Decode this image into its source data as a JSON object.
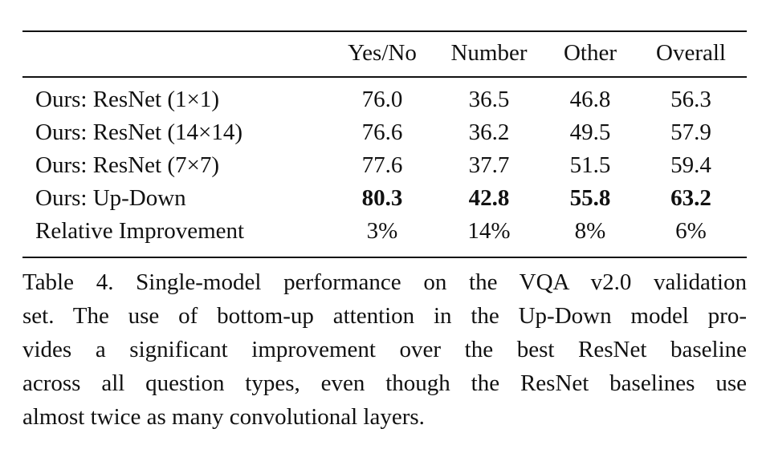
{
  "table": {
    "columns": [
      "",
      "Yes/No",
      "Number",
      "Other",
      "Overall"
    ],
    "rows": [
      {
        "label": "Ours: ResNet (1×1)",
        "values": [
          "76.0",
          "36.5",
          "46.8",
          "56.3"
        ]
      },
      {
        "label": "Ours: ResNet (14×14)",
        "values": [
          "76.6",
          "36.2",
          "49.5",
          "57.9"
        ]
      },
      {
        "label": "Ours: ResNet (7×7)",
        "values": [
          "77.6",
          "37.7",
          "51.5",
          "59.4"
        ]
      },
      {
        "label": "Ours: Up-Down",
        "values": [
          "80.3",
          "42.8",
          "55.8",
          "63.2"
        ]
      },
      {
        "label": "Relative Improvement",
        "values": [
          "3%",
          "14%",
          "8%",
          "6%"
        ]
      }
    ]
  },
  "caption": {
    "lines": [
      "Table 4. Single-model performance on the VQA v2.0 validation",
      "set. The use of bottom-up attention in the Up-Down model pro-",
      "vides a significant improvement over the best ResNet baseline",
      "across all question types, even though the ResNet baselines use",
      "almost twice as many convolutional layers."
    ]
  }
}
